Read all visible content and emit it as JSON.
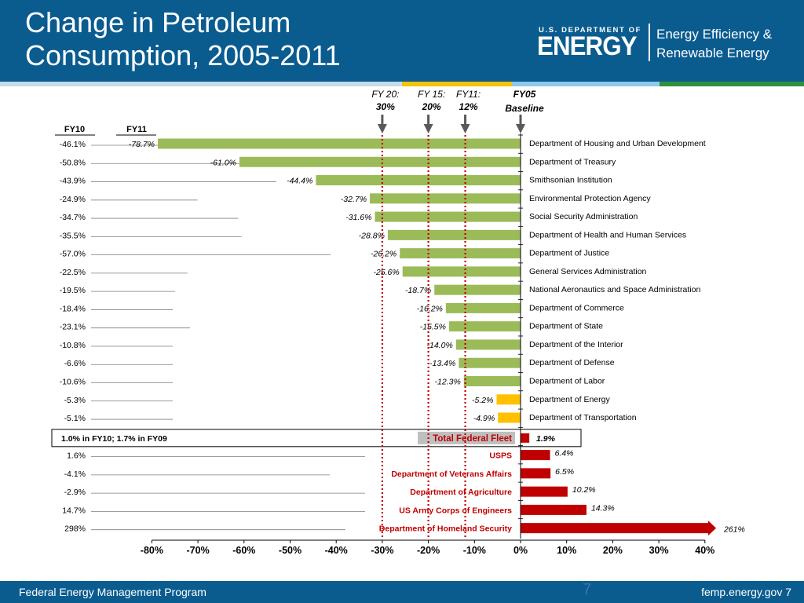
{
  "slide": {
    "title_line1": "Change in Petroleum",
    "title_line2": "Consumption, 2005-2011",
    "logo_top": "U.S. DEPARTMENT OF",
    "logo_main": "ENERGY",
    "logo_office_line1": "Energy Efficiency &",
    "logo_office_line2": "Renewable Energy",
    "footer_left": "Federal Energy Management Program",
    "footer_right": "femp.energy.gov   7",
    "ghost_number": "7",
    "colors": {
      "header": "#0a5c8f",
      "stripe": [
        "#c8dbe8",
        "#f4c20d",
        "#8fc8e8",
        "#2f8f3f"
      ],
      "bar_green": "#9bbb59",
      "bar_yellow": "#ffc000",
      "bar_red": "#c00000",
      "ref_line": "#c00000",
      "arrow": "#595959"
    }
  },
  "chart_data": {
    "type": "bar",
    "orientation": "horizontal",
    "x_ticks": [
      "-80%",
      "-70%",
      "-60%",
      "-50%",
      "-40%",
      "-30%",
      "-20%",
      "-10%",
      "0%",
      "10%",
      "20%",
      "30%",
      "40%"
    ],
    "xlim": [
      -80,
      40
    ],
    "column_headers": {
      "fy10": "FY10",
      "fy11": "FY11"
    },
    "markers": [
      {
        "line1": "FY 20:",
        "line2": "30%",
        "value": -30,
        "style": "dotted"
      },
      {
        "line1": "FY 15:",
        "line2": "20%",
        "value": -20,
        "style": "dotted"
      },
      {
        "line1": "FY11:",
        "line2": "12%",
        "value": -12,
        "style": "dotted"
      },
      {
        "line1": "FY05",
        "line2": "Baseline",
        "value": 0,
        "style": "bold"
      }
    ],
    "agencies": [
      {
        "name": "Department of Housing and Urban Development",
        "fy11": -78.7,
        "fy11_label": "-78.7%",
        "fy10_label": "-46.1%",
        "fy10": -46.1,
        "color": "green"
      },
      {
        "name": "Department of Treasury",
        "fy11": -61.0,
        "fy11_label": "-61.0%",
        "fy10_label": "-50.8%",
        "fy10": -50.8,
        "color": "green"
      },
      {
        "name": "Smithsonian Institution",
        "fy11": -44.4,
        "fy11_label": "-44.4%",
        "fy10_label": "-43.9%",
        "fy10": -43.9,
        "color": "green"
      },
      {
        "name": "Environmental Protection Agency",
        "fy11": -32.7,
        "fy11_label": "-32.7%",
        "fy10_label": "-24.9%",
        "fy10": -24.9,
        "color": "green"
      },
      {
        "name": "Social Security Administration",
        "fy11": -31.6,
        "fy11_label": "-31.6%",
        "fy10_label": "-34.7%",
        "fy10": -34.7,
        "color": "green"
      },
      {
        "name": "Department of Health and Human Services",
        "fy11": -28.8,
        "fy11_label": "-28.8%",
        "fy10_label": "-35.5%",
        "fy10": -35.5,
        "color": "green"
      },
      {
        "name": "Department of Justice",
        "fy11": -26.2,
        "fy11_label": "-26.2%",
        "fy10_label": "-57.0%",
        "fy10": -57.0,
        "color": "green"
      },
      {
        "name": "General Services Administration",
        "fy11": -25.6,
        "fy11_label": "-25.6%",
        "fy10_label": "-22.5%",
        "fy10": -22.5,
        "color": "green"
      },
      {
        "name": "National Aeronautics and Space Administration",
        "fy11": -18.7,
        "fy11_label": "-18.7%",
        "fy10_label": "-19.5%",
        "fy10": -19.5,
        "color": "green"
      },
      {
        "name": "Department of Commerce",
        "fy11": -16.2,
        "fy11_label": "-16.2%",
        "fy10_label": "-18.4%",
        "fy10": -18.4,
        "color": "green"
      },
      {
        "name": "Department of State",
        "fy11": -15.5,
        "fy11_label": "-15.5%",
        "fy10_label": "-23.1%",
        "fy10": -23.1,
        "color": "green"
      },
      {
        "name": "Department of the Interior",
        "fy11": -14.0,
        "fy11_label": "-14.0%",
        "fy10_label": "-10.8%",
        "fy10": -10.8,
        "color": "green"
      },
      {
        "name": "Department of Defense",
        "fy11": -13.4,
        "fy11_label": "-13.4%",
        "fy10_label": "-6.6%",
        "fy10": -6.6,
        "color": "green"
      },
      {
        "name": "Department of Labor",
        "fy11": -12.3,
        "fy11_label": "-12.3%",
        "fy10_label": "-10.6%",
        "fy10": -10.6,
        "color": "green"
      },
      {
        "name": "Department of Energy",
        "fy11": -5.2,
        "fy11_label": "-5.2%",
        "fy10_label": "-5.3%",
        "fy10": -5.3,
        "color": "yellow"
      },
      {
        "name": "Department of Transportation",
        "fy11": -4.9,
        "fy11_label": "-4.9%",
        "fy10_label": "-5.1%",
        "fy10": -5.1,
        "color": "yellow"
      }
    ],
    "total": {
      "name": "Total Federal Fleet",
      "fy11": 1.9,
      "fy11_label": "1.9%",
      "prior_note": "1.0% in FY10; 1.7% in FY09"
    },
    "increases": [
      {
        "name": "USPS",
        "fy11": 6.4,
        "fy11_label": "6.4%",
        "fy10_label": "1.6%",
        "fy10": 1.6
      },
      {
        "name": "Department of Veterans Affairs",
        "fy11": 6.5,
        "fy11_label": "6.5%",
        "fy10_label": "-4.1%",
        "fy10": -4.1
      },
      {
        "name": "Department of Agriculture",
        "fy11": 10.2,
        "fy11_label": "10.2%",
        "fy10_label": "-2.9%",
        "fy10": -2.9
      },
      {
        "name": "US Army Corps of Engineers",
        "fy11": 14.3,
        "fy11_label": "14.3%",
        "fy10_label": "14.7%",
        "fy10": 14.7
      },
      {
        "name": "Department of Homeland Security",
        "fy11": 261,
        "fy11_label": "261%",
        "fy10_label": "298%",
        "fy10": 298
      }
    ]
  }
}
